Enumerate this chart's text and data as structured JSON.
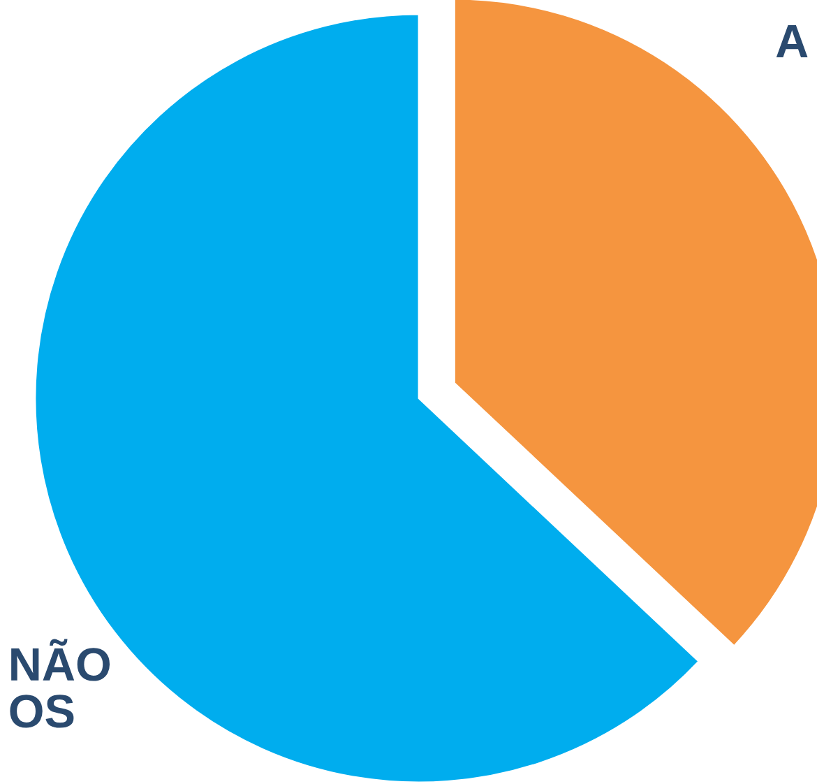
{
  "chart_data": {
    "type": "pie",
    "categories": [
      "A",
      "NÃO\nOS"
    ],
    "values": [
      37,
      63
    ],
    "colors": [
      "#f5953f",
      "#00adee"
    ]
  }
}
